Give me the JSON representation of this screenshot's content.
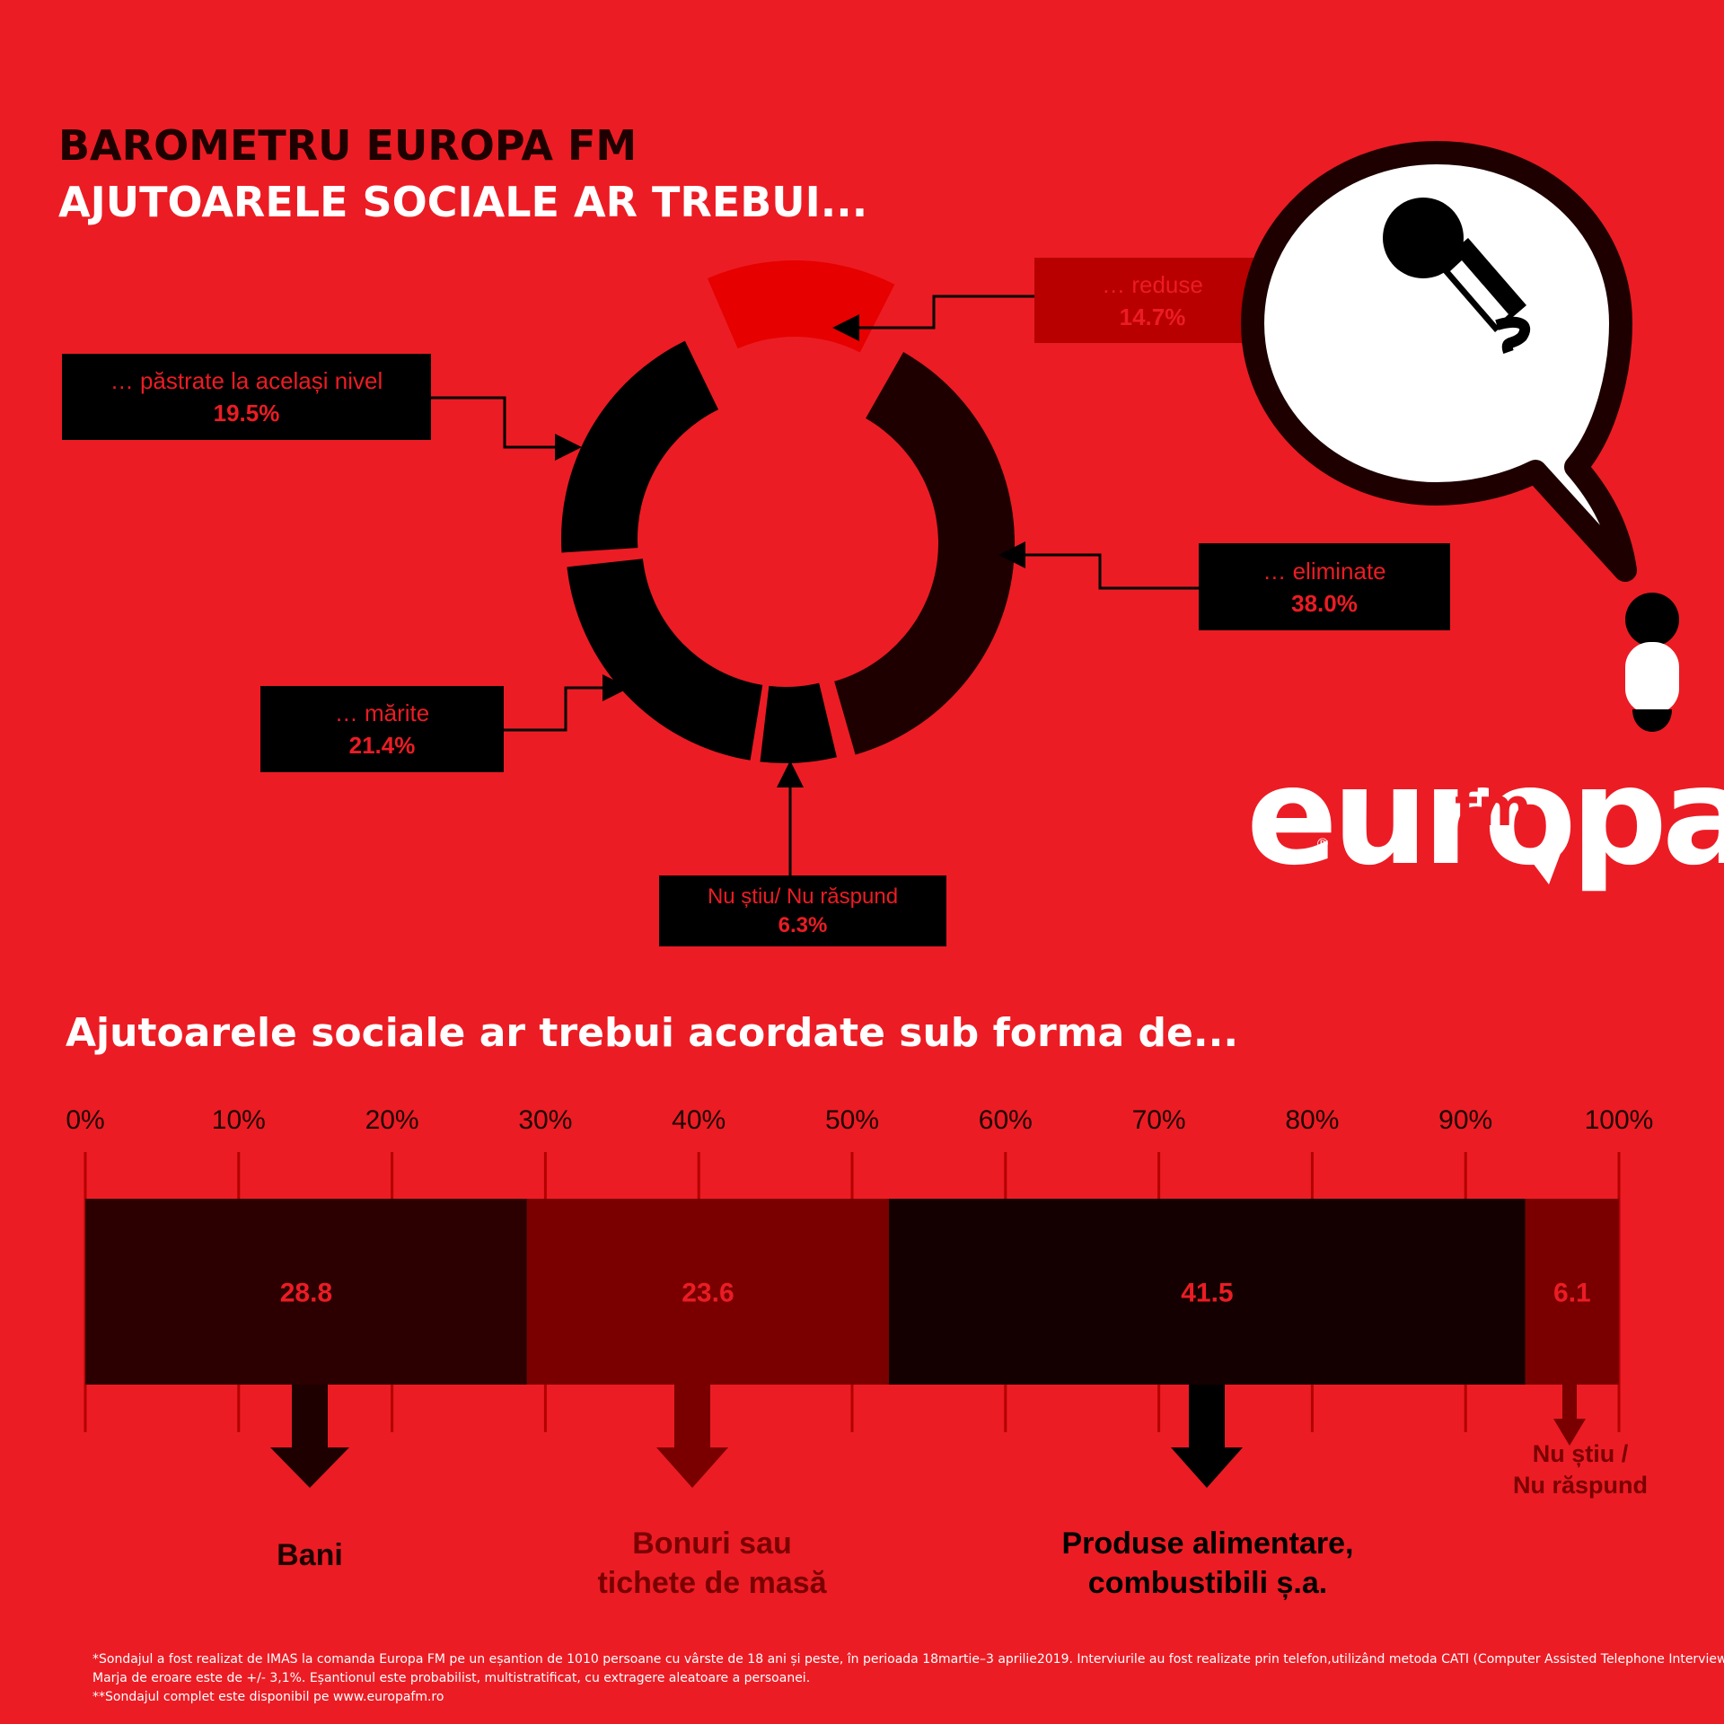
{
  "header": {
    "title": "BAROMETRU EUROPA FM",
    "subtitle": "AJUTOARELE SOCIALE AR TREBUI..."
  },
  "donut_labels": {
    "reduse": {
      "label": "… reduse",
      "pct": "14.7%"
    },
    "pastrate": {
      "label": "… păstrate la același nivel",
      "pct": "19.5%"
    },
    "eliminate": {
      "label": "… eliminate",
      "pct": "38.0%"
    },
    "marite": {
      "label": "… mărite",
      "pct": "21.4%"
    },
    "nu_stiu": {
      "label": "Nu știu/ Nu răspund",
      "pct": "6.3%"
    }
  },
  "bar_section": {
    "title": "Ajutoarele sociale ar trebui acordate sub forma de...",
    "categories": [
      {
        "lines": [
          "Bani"
        ]
      },
      {
        "lines": [
          "Bonuri sau",
          "tichete de masă"
        ]
      },
      {
        "lines": [
          "Produse alimentare,",
          "combustibili ș.a."
        ]
      },
      {
        "lines": [
          "Nu știu /",
          "Nu răspund"
        ]
      }
    ]
  },
  "footnotes": [
    "*Sondajul a fost realizat de IMAS la comanda Europa FM pe un eșantion de 1010 persoane cu vârste de 18 ani și peste, în perioada 18martie–3 aprilie2019. Interviurile au fost realizate prin telefon,utilizând metoda CATI (Computer Assisted Telephone Interviewing).",
    "Marja de eroare este de +/- 3,1%. Eșantionul este probabilist, multistratificat, cu extragere aleatoare a persoanei.",
    "**Sondajul complet este disponibil pe www.europafm.ro"
  ],
  "logo": {
    "main": "europa",
    "fm": "fm",
    "reg": "®"
  },
  "colors": {
    "background": "#ec1c24",
    "black": "#000000",
    "dark": "#1e0000",
    "maroon": "#7a0000",
    "bright_red": "#e60000",
    "deep_red": "#b80000"
  },
  "chart_data": [
    {
      "type": "pie",
      "variant": "donut",
      "slices": [
        {
          "label": "… reduse",
          "value": 14.7,
          "color": "#e60000"
        },
        {
          "label": "… eliminate",
          "value": 38.0,
          "color": "#1e0000"
        },
        {
          "label": "Nu știu/ Nu răspund",
          "value": 6.3,
          "color": "#000000"
        },
        {
          "label": "… mărite",
          "value": 21.4,
          "color": "#000000"
        },
        {
          "label": "… păstrate la același nivel",
          "value": 19.5,
          "color": "#000000"
        }
      ]
    },
    {
      "type": "bar",
      "orientation": "horizontal-stacked",
      "categories": [
        "Bani",
        "Bonuri sau tichete de masă",
        "Produse alimentare, combustibili ș.a.",
        "Nu știu / Nu răspund"
      ],
      "values": [
        28.8,
        23.6,
        41.5,
        6.1
      ],
      "value_labels": [
        "28.8",
        "23.6",
        "41.5",
        "6.1"
      ],
      "segment_colors": [
        "#2c0000",
        "#7a0000",
        "#140000",
        "#7a0000"
      ],
      "label_colors": [
        "#1e0000",
        "#7a0000",
        "#000000",
        "#7a0000"
      ],
      "xlim": [
        0,
        100
      ],
      "xticks": [
        "0%",
        "10%",
        "20%",
        "30%",
        "40%",
        "50%",
        "60%",
        "70%",
        "80%",
        "90%",
        "100%"
      ],
      "grid": true
    }
  ]
}
